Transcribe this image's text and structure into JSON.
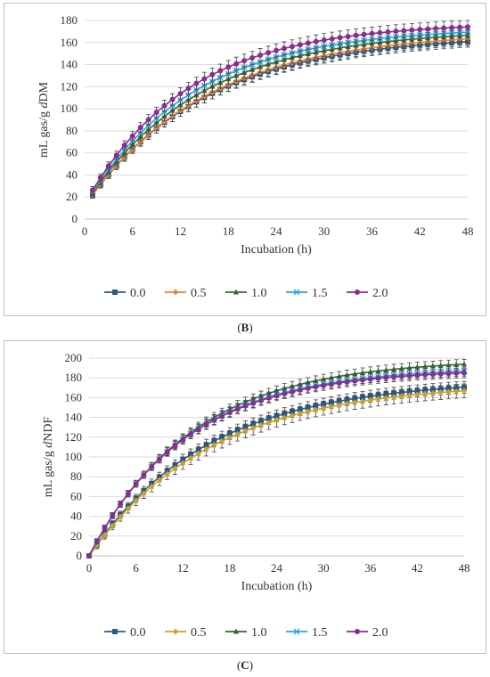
{
  "chart_data": [
    {
      "id": "B",
      "type": "line",
      "caption": "B",
      "xlabel": "Incubation (h)",
      "ylabel_prefix": "mL gas/g ",
      "ylabel_d": "d",
      "ylabel_suffix": "DM",
      "xlim": [
        0,
        48
      ],
      "ylim": [
        0,
        180
      ],
      "xticks": [
        "0",
        "6",
        "12",
        "18",
        "24",
        "30",
        "36",
        "42",
        "48"
      ],
      "yticks": [
        "0",
        "20",
        "40",
        "60",
        "80",
        "100",
        "120",
        "140",
        "160",
        "180"
      ],
      "legend_position": "bottom",
      "x": [
        1,
        2,
        3,
        4,
        5,
        6,
        7,
        8,
        9,
        10,
        11,
        12,
        13,
        14,
        15,
        16,
        17,
        18,
        19,
        20,
        21,
        22,
        23,
        24,
        25,
        26,
        27,
        28,
        29,
        30,
        31,
        32,
        33,
        34,
        35,
        36,
        37,
        38,
        39,
        40,
        41,
        42,
        43,
        44,
        45,
        46,
        47,
        48
      ],
      "series": [
        {
          "name": "0.0",
          "color": "#2a5b86",
          "marker": "square",
          "A": 167,
          "k": 0.067,
          "c": 12,
          "err": 5
        },
        {
          "name": "0.5",
          "color": "#ed7d31",
          "marker": "diamond",
          "A": 170,
          "k": 0.066,
          "c": 12,
          "err": 6
        },
        {
          "name": "1.0",
          "color": "#2e6b2e",
          "marker": "triangle",
          "A": 172,
          "k": 0.07,
          "c": 13,
          "err": 5
        },
        {
          "name": "1.5",
          "color": "#2ba3e0",
          "marker": "x",
          "A": 174,
          "k": 0.074,
          "c": 13,
          "err": 5
        },
        {
          "name": "2.0",
          "color": "#8b2c8f",
          "marker": "circle",
          "A": 178,
          "k": 0.078,
          "c": 14,
          "err": 6
        }
      ]
    },
    {
      "id": "C",
      "type": "line",
      "caption": "C",
      "xlabel": "Incubation (h)",
      "ylabel_prefix": "mL gas/g ",
      "ylabel_d": "d",
      "ylabel_suffix": "NDF",
      "xlim": [
        0,
        48
      ],
      "ylim": [
        0,
        200
      ],
      "xticks": [
        "0",
        "6",
        "12",
        "18",
        "24",
        "30",
        "36",
        "42",
        "48"
      ],
      "yticks": [
        "0",
        "20",
        "40",
        "60",
        "80",
        "100",
        "120",
        "140",
        "160",
        "180",
        "200"
      ],
      "legend_position": "bottom",
      "x": [
        0,
        1,
        2,
        3,
        4,
        5,
        6,
        7,
        8,
        9,
        10,
        11,
        12,
        13,
        14,
        15,
        16,
        17,
        18,
        19,
        20,
        21,
        22,
        23,
        24,
        25,
        26,
        27,
        28,
        29,
        30,
        31,
        32,
        33,
        34,
        35,
        36,
        37,
        38,
        39,
        40,
        41,
        42,
        43,
        44,
        45,
        46,
        47,
        48
      ],
      "series": [
        {
          "name": "0.0",
          "color": "#2a5b86",
          "marker": "square",
          "A": 178,
          "k": 0.066,
          "c": 0,
          "err": 6
        },
        {
          "name": "0.5",
          "color": "#c9a227",
          "marker": "diamond",
          "A": 175,
          "k": 0.064,
          "c": 0,
          "err": 7
        },
        {
          "name": "1.0",
          "color": "#2e6b2e",
          "marker": "triangle",
          "A": 199,
          "k": 0.076,
          "c": 0,
          "err": 5
        },
        {
          "name": "1.5",
          "color": "#2ba3e0",
          "marker": "x",
          "A": 191,
          "k": 0.08,
          "c": 0,
          "err": 5
        },
        {
          "name": "2.0",
          "color": "#8b2c8f",
          "marker": "circle",
          "A": 189,
          "k": 0.081,
          "c": 0,
          "err": 5
        }
      ]
    }
  ]
}
